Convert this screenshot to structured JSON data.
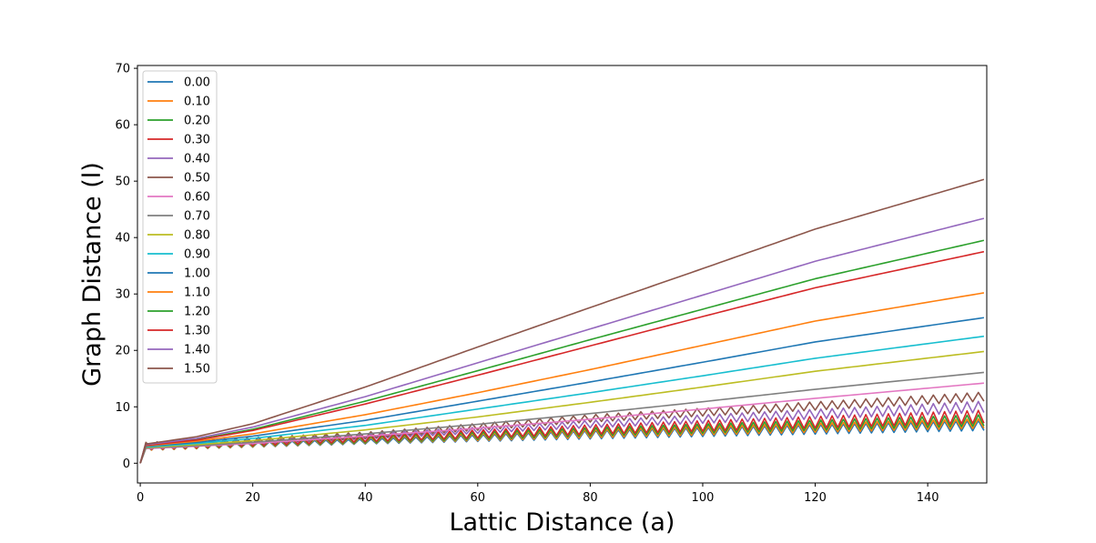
{
  "chart_data": {
    "type": "line",
    "title": "",
    "xlabel": "Lattic Distance (a)",
    "ylabel": "Graph Distance (l)",
    "xlim": [
      -0.5,
      150.5
    ],
    "ylim": [
      -3.5,
      70.5
    ],
    "xticks": [
      0,
      20,
      40,
      60,
      80,
      100,
      120,
      140
    ],
    "yticks": [
      0,
      10,
      20,
      30,
      40,
      50,
      60,
      70
    ],
    "grid": false,
    "legend_position": "upper left",
    "x": {
      "start": 0,
      "stop": 150,
      "step": 1
    },
    "series": [
      {
        "name": "0.00",
        "color": "#1f77b4",
        "end_value": 6.5,
        "low_values": [
          [
            0,
            0
          ],
          [
            1,
            2.3
          ],
          [
            40,
            3.4
          ],
          [
            80,
            4.3
          ],
          [
            150,
            5.8
          ]
        ],
        "high_values": [
          [
            0,
            0
          ],
          [
            1,
            3.2
          ],
          [
            40,
            4.3
          ],
          [
            80,
            5.8
          ],
          [
            150,
            7.6
          ]
        ]
      },
      {
        "name": "0.10",
        "color": "#ff7f0e",
        "end_value": 7.0,
        "low_values": [
          [
            0,
            0
          ],
          [
            1,
            2.3
          ],
          [
            40,
            3.5
          ],
          [
            80,
            4.5
          ],
          [
            150,
            6.2
          ]
        ],
        "high_values": [
          [
            0,
            0
          ],
          [
            1,
            3.3
          ],
          [
            40,
            4.6
          ],
          [
            80,
            6.0
          ],
          [
            150,
            7.9
          ]
        ]
      },
      {
        "name": "0.20",
        "color": "#2ca02c",
        "end_value": 7.5,
        "low_values": [
          [
            0,
            0
          ],
          [
            1,
            2.4
          ],
          [
            40,
            3.6
          ],
          [
            80,
            4.8
          ],
          [
            150,
            6.6
          ]
        ],
        "high_values": [
          [
            0,
            0
          ],
          [
            1,
            3.4
          ],
          [
            40,
            4.8
          ],
          [
            80,
            6.3
          ],
          [
            150,
            8.6
          ]
        ]
      },
      {
        "name": "0.30",
        "color": "#d62728",
        "end_value": 8.2,
        "low_values": [
          [
            0,
            0
          ],
          [
            1,
            2.4
          ],
          [
            40,
            3.8
          ],
          [
            80,
            5.1
          ],
          [
            150,
            7.1
          ]
        ],
        "high_values": [
          [
            0,
            0
          ],
          [
            1,
            3.5
          ],
          [
            40,
            5.0
          ],
          [
            80,
            6.8
          ],
          [
            150,
            9.4
          ]
        ]
      },
      {
        "name": "0.40",
        "color": "#9467bd",
        "end_value": 9.5,
        "low_values": [
          [
            0,
            0
          ],
          [
            1,
            2.5
          ],
          [
            40,
            4.3
          ],
          [
            80,
            6.3
          ],
          [
            150,
            9.0
          ]
        ],
        "high_values": [
          [
            0,
            0
          ],
          [
            1,
            3.6
          ],
          [
            40,
            5.2
          ],
          [
            80,
            7.6
          ],
          [
            150,
            11.0
          ]
        ]
      },
      {
        "name": "0.50",
        "color": "#8c564b",
        "end_value": 11.5,
        "low_values": [
          [
            0,
            0
          ],
          [
            1,
            2.6
          ],
          [
            40,
            4.4
          ],
          [
            80,
            7.3
          ],
          [
            150,
            11.0
          ]
        ],
        "high_values": [
          [
            0,
            0
          ],
          [
            1,
            3.7
          ],
          [
            40,
            5.5
          ],
          [
            80,
            8.6
          ],
          [
            150,
            12.6
          ]
        ]
      },
      {
        "name": "0.60",
        "color": "#e377c2",
        "end_value": 14.2,
        "values": [
          [
            0,
            0
          ],
          [
            1,
            2.6
          ],
          [
            10,
            3.0
          ],
          [
            20,
            3.5
          ],
          [
            40,
            4.8
          ],
          [
            60,
            6.2
          ],
          [
            80,
            7.8
          ],
          [
            100,
            9.6
          ],
          [
            120,
            11.5
          ],
          [
            150,
            14.2
          ]
        ]
      },
      {
        "name": "0.70",
        "color": "#7f7f7f",
        "end_value": 16.1,
        "values": [
          [
            0,
            0
          ],
          [
            1,
            2.7
          ],
          [
            10,
            3.1
          ],
          [
            20,
            3.7
          ],
          [
            40,
            5.2
          ],
          [
            60,
            6.9
          ],
          [
            80,
            8.8
          ],
          [
            100,
            10.9
          ],
          [
            120,
            13.1
          ],
          [
            150,
            16.1
          ]
        ]
      },
      {
        "name": "0.80",
        "color": "#bcbd22",
        "end_value": 19.8,
        "values": [
          [
            0,
            0
          ],
          [
            1,
            2.8
          ],
          [
            10,
            3.3
          ],
          [
            20,
            4.0
          ],
          [
            40,
            5.9
          ],
          [
            60,
            8.2
          ],
          [
            80,
            10.8
          ],
          [
            100,
            13.5
          ],
          [
            120,
            16.3
          ],
          [
            150,
            19.8
          ]
        ]
      },
      {
        "name": "0.90",
        "color": "#17becf",
        "end_value": 22.5,
        "values": [
          [
            0,
            0
          ],
          [
            1,
            2.9
          ],
          [
            10,
            3.5
          ],
          [
            20,
            4.4
          ],
          [
            40,
            6.7
          ],
          [
            60,
            9.6
          ],
          [
            80,
            12.5
          ],
          [
            100,
            15.5
          ],
          [
            120,
            18.6
          ],
          [
            150,
            22.5
          ]
        ]
      },
      {
        "name": "1.00",
        "color": "#1f77b4",
        "end_value": 25.8,
        "values": [
          [
            0,
            0
          ],
          [
            1,
            3.0
          ],
          [
            10,
            3.7
          ],
          [
            20,
            4.8
          ],
          [
            40,
            7.6
          ],
          [
            60,
            11.0
          ],
          [
            80,
            14.4
          ],
          [
            100,
            17.9
          ],
          [
            120,
            21.5
          ],
          [
            150,
            25.8
          ]
        ]
      },
      {
        "name": "1.10",
        "color": "#ff7f0e",
        "end_value": 30.2,
        "values": [
          [
            0,
            0
          ],
          [
            1,
            3.1
          ],
          [
            10,
            3.9
          ],
          [
            20,
            5.2
          ],
          [
            40,
            8.6
          ],
          [
            60,
            12.5
          ],
          [
            80,
            16.6
          ],
          [
            100,
            20.9
          ],
          [
            120,
            25.2
          ],
          [
            150,
            30.2
          ]
        ]
      },
      {
        "name": "1.20",
        "color": "#2ca02c",
        "end_value": 39.5,
        "values": [
          [
            0,
            0
          ],
          [
            1,
            3.2
          ],
          [
            10,
            4.2
          ],
          [
            20,
            6.0
          ],
          [
            40,
            11.0
          ],
          [
            60,
            16.4
          ],
          [
            80,
            21.9
          ],
          [
            100,
            27.3
          ],
          [
            120,
            32.7
          ],
          [
            150,
            39.5
          ]
        ]
      },
      {
        "name": "1.30",
        "color": "#d62728",
        "end_value": 37.5,
        "values": [
          [
            0,
            0
          ],
          [
            1,
            3.2
          ],
          [
            10,
            4.1
          ],
          [
            20,
            5.8
          ],
          [
            40,
            10.5
          ],
          [
            60,
            15.6
          ],
          [
            80,
            20.8
          ],
          [
            100,
            26.0
          ],
          [
            120,
            31.1
          ],
          [
            150,
            37.5
          ]
        ]
      },
      {
        "name": "1.40",
        "color": "#9467bd",
        "end_value": 43.4,
        "values": [
          [
            0,
            0
          ],
          [
            1,
            3.3
          ],
          [
            10,
            4.4
          ],
          [
            20,
            6.4
          ],
          [
            40,
            11.8
          ],
          [
            60,
            17.8
          ],
          [
            80,
            23.8
          ],
          [
            100,
            29.8
          ],
          [
            120,
            35.8
          ],
          [
            150,
            43.4
          ]
        ]
      },
      {
        "name": "1.50",
        "color": "#8c564b",
        "end_value": 50.3,
        "values": [
          [
            0,
            0
          ],
          [
            1,
            3.4
          ],
          [
            10,
            4.7
          ],
          [
            20,
            7.0
          ],
          [
            40,
            13.5
          ],
          [
            60,
            20.6
          ],
          [
            80,
            27.6
          ],
          [
            100,
            34.5
          ],
          [
            120,
            41.5
          ],
          [
            150,
            50.3
          ]
        ]
      }
    ]
  }
}
